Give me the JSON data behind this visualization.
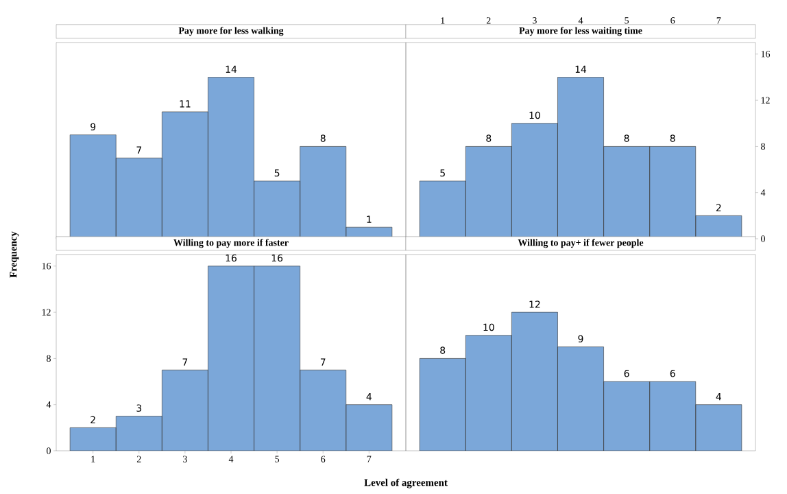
{
  "chart_data": [
    {
      "type": "histogram",
      "title": "Pay more for less walking",
      "bins": [
        0.5,
        1.5,
        2.5,
        3.5,
        4.5,
        5.5,
        6.5,
        7.5
      ],
      "values": [
        9,
        7,
        11,
        14,
        5,
        8,
        1
      ],
      "color": "#7ba7d9",
      "data_labels": true,
      "xlim": [
        0.2,
        7.8
      ],
      "ylim": [
        0,
        17
      ],
      "xticks": [
        1,
        2,
        3,
        4,
        5,
        6,
        7
      ],
      "yticks": [
        0,
        4,
        8,
        12,
        16
      ],
      "tick_labels": false
    },
    {
      "type": "histogram",
      "title": "Pay more for less waiting time",
      "bins": [
        0.5,
        1.5,
        2.5,
        3.5,
        4.5,
        5.5,
        6.5,
        7.5
      ],
      "values": [
        5,
        8,
        10,
        14,
        8,
        8,
        2
      ],
      "color": "#7ba7d9",
      "data_labels": true,
      "xlim": [
        0.2,
        7.8
      ],
      "ylim": [
        0,
        17
      ],
      "xticks": [
        1,
        2,
        3,
        4,
        5,
        6,
        7
      ],
      "yticks": [
        0,
        4,
        8,
        12,
        16
      ]
    },
    {
      "type": "histogram",
      "title": "Willing to pay more if faster",
      "xlabel": "Level of agreement",
      "ylabel": "Frequency",
      "bins": [
        0.5,
        1.5,
        2.5,
        3.5,
        4.5,
        5.5,
        6.5,
        7.5
      ],
      "values": [
        2,
        3,
        7,
        16,
        16,
        7,
        4
      ],
      "color": "#7ba7d9",
      "data_labels": true,
      "xlim": [
        0.2,
        7.8
      ],
      "ylim": [
        0,
        17
      ],
      "xticks": [
        1,
        2,
        3,
        4,
        5,
        6,
        7
      ],
      "yticks": [
        0,
        4,
        8,
        12,
        16
      ]
    },
    {
      "type": "histogram",
      "title": "Willing to pay+ if fewer people",
      "bins": [
        0.5,
        1.5,
        2.5,
        3.5,
        4.5,
        5.5,
        6.5,
        7.5
      ],
      "values": [
        8,
        10,
        12,
        9,
        6,
        6,
        4
      ],
      "color": "#7ba7d9",
      "data_labels": true,
      "xlim": [
        0.2,
        7.8
      ],
      "ylim": [
        0,
        17
      ],
      "xticks": [
        1,
        2,
        3,
        4,
        5,
        6,
        7
      ],
      "yticks": [
        0,
        4,
        8,
        12,
        16
      ],
      "tick_labels": false
    }
  ]
}
